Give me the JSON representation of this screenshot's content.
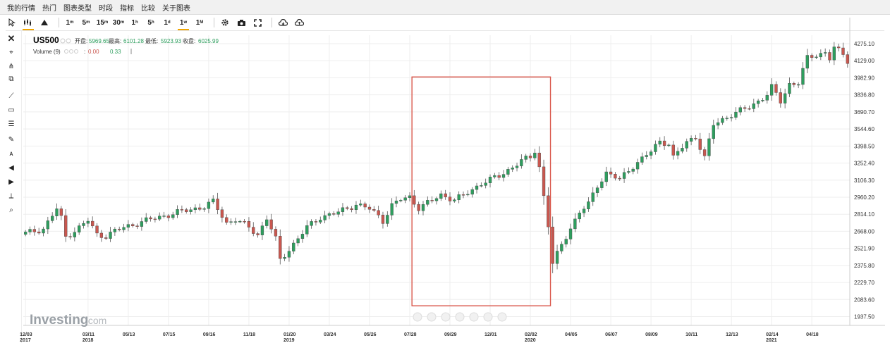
{
  "menu": [
    "我的行情",
    "热门",
    "图表类型",
    "时段",
    "指标",
    "比较",
    "关于图表"
  ],
  "toolbar": {
    "intervals": [
      "1m",
      "5m",
      "15m",
      "30m",
      "1h",
      "5h",
      "1d",
      "1w",
      "1M"
    ],
    "active_interval": "1w"
  },
  "legend": {
    "symbol": "US500",
    "open_label": "开盘:",
    "open": "5969.65",
    "high_label": "最高:",
    "high": "6101.28",
    "low_label": "最低:",
    "low": "5923.93",
    "close_label": "收盘:",
    "close": "6025.99",
    "volume_label": "Volume (9)",
    "volume_a": "0.00",
    "volume_b": "0.33"
  },
  "watermark": {
    "brand": "Investing",
    "suffix": ".com"
  },
  "colors": {
    "up": "#2e9e5e",
    "down": "#c9574f",
    "highlight": "#d9564a",
    "grid": "#eeeeee",
    "text": "#333333"
  },
  "chart_data": {
    "type": "candlestick",
    "y_ticks": [
      "4275.10",
      "4129.00",
      "3982.90",
      "3836.80",
      "3690.70",
      "3544.60",
      "3398.50",
      "3252.40",
      "3106.30",
      "2960.20",
      "2814.10",
      "2668.00",
      "2521.90",
      "2375.80",
      "2229.70",
      "2083.60",
      "1937.50"
    ],
    "ylim": [
      1937.5,
      4275.1
    ],
    "x_ticks": [
      {
        "label": "12/03",
        "year": "2017",
        "index": 0
      },
      {
        "label": "03/11",
        "year": "2018",
        "index": 14
      },
      {
        "label": "05/13",
        "year": "",
        "index": 23
      },
      {
        "label": "07/15",
        "year": "",
        "index": 32
      },
      {
        "label": "09/16",
        "year": "",
        "index": 41
      },
      {
        "label": "11/18",
        "year": "",
        "index": 50
      },
      {
        "label": "01/20",
        "year": "2019",
        "index": 59
      },
      {
        "label": "03/24",
        "year": "",
        "index": 68
      },
      {
        "label": "05/26",
        "year": "",
        "index": 77
      },
      {
        "label": "07/28",
        "year": "",
        "index": 86
      },
      {
        "label": "09/29",
        "year": "",
        "index": 95
      },
      {
        "label": "12/01",
        "year": "",
        "index": 104
      },
      {
        "label": "02/02",
        "year": "2020",
        "index": 113
      },
      {
        "label": "04/05",
        "year": "",
        "index": 122
      },
      {
        "label": "06/07",
        "year": "",
        "index": 131
      },
      {
        "label": "08/09",
        "year": "",
        "index": 140
      },
      {
        "label": "10/11",
        "year": "",
        "index": 149
      },
      {
        "label": "12/13",
        "year": "",
        "index": 158
      },
      {
        "label": "02/14",
        "year": "2021",
        "index": 167
      },
      {
        "label": "04/18",
        "year": "",
        "index": 176
      }
    ],
    "anchors": [
      [
        0,
        2650
      ],
      [
        4,
        2690
      ],
      [
        7,
        2860
      ],
      [
        8,
        2780
      ],
      [
        9,
        2620
      ],
      [
        12,
        2700
      ],
      [
        14,
        2760
      ],
      [
        16,
        2640
      ],
      [
        18,
        2630
      ],
      [
        20,
        2670
      ],
      [
        22,
        2700
      ],
      [
        26,
        2750
      ],
      [
        30,
        2790
      ],
      [
        34,
        2830
      ],
      [
        40,
        2880
      ],
      [
        42,
        2920
      ],
      [
        45,
        2740
      ],
      [
        47,
        2770
      ],
      [
        50,
        2700
      ],
      [
        52,
        2640
      ],
      [
        54,
        2780
      ],
      [
        56,
        2600
      ],
      [
        57,
        2420
      ],
      [
        60,
        2560
      ],
      [
        63,
        2700
      ],
      [
        66,
        2790
      ],
      [
        70,
        2830
      ],
      [
        74,
        2900
      ],
      [
        77,
        2860
      ],
      [
        79,
        2800
      ],
      [
        80,
        2760
      ],
      [
        82,
        2890
      ],
      [
        84,
        2940
      ],
      [
        86,
        2960
      ],
      [
        88,
        2870
      ],
      [
        91,
        2930
      ],
      [
        93,
        2980
      ],
      [
        96,
        2940
      ],
      [
        98,
        2970
      ],
      [
        102,
        3080
      ],
      [
        106,
        3140
      ],
      [
        109,
        3220
      ],
      [
        111,
        3270
      ],
      [
        113,
        3300
      ],
      [
        114,
        3360
      ],
      [
        115,
        3220
      ],
      [
        116,
        2970
      ],
      [
        117,
        2720
      ],
      [
        118,
        2390
      ],
      [
        120,
        2550
      ],
      [
        122,
        2700
      ],
      [
        124,
        2830
      ],
      [
        126,
        2900
      ],
      [
        128,
        3060
      ],
      [
        130,
        3170
      ],
      [
        133,
        3110
      ],
      [
        136,
        3230
      ],
      [
        140,
        3350
      ],
      [
        142,
        3440
      ],
      [
        144,
        3420
      ],
      [
        145,
        3300
      ],
      [
        148,
        3430
      ],
      [
        150,
        3480
      ],
      [
        152,
        3300
      ],
      [
        154,
        3580
      ],
      [
        158,
        3670
      ],
      [
        162,
        3730
      ],
      [
        166,
        3840
      ],
      [
        167,
        3900
      ],
      [
        169,
        3780
      ],
      [
        171,
        3930
      ],
      [
        173,
        3940
      ],
      [
        175,
        4150
      ],
      [
        177,
        4180
      ],
      [
        179,
        4200
      ],
      [
        180,
        4150
      ],
      [
        181,
        4240
      ],
      [
        182,
        4210
      ],
      [
        183,
        4180
      ],
      [
        184,
        4130
      ]
    ],
    "candle_count": 185,
    "annotation": {
      "type": "rectangle",
      "from_index": 87,
      "to_index": 117,
      "y_top": 3990,
      "y_bottom": 2030
    }
  }
}
